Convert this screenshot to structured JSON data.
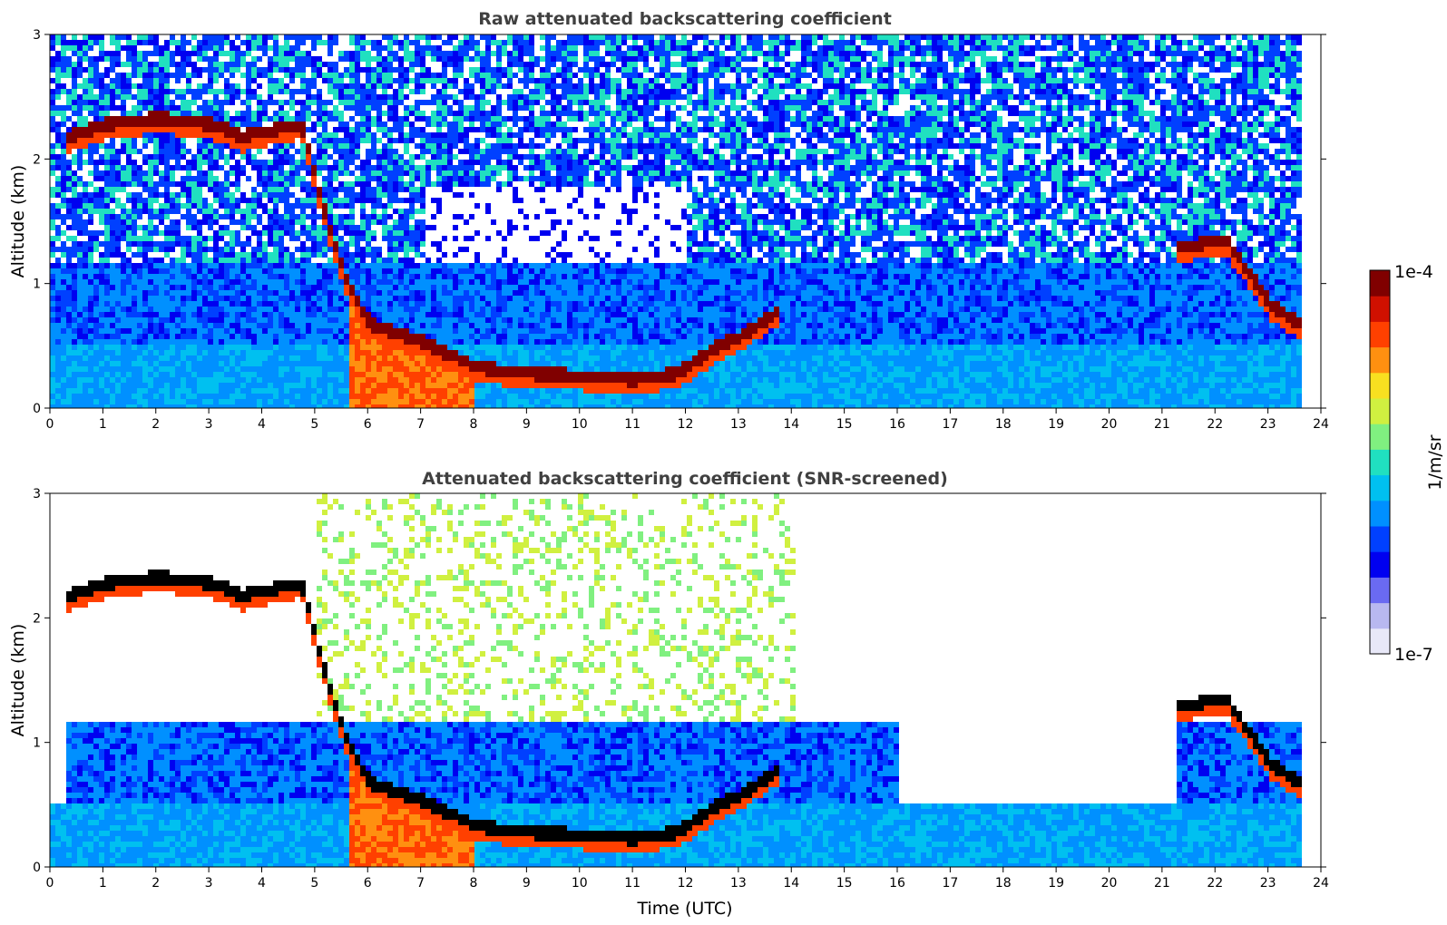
{
  "chart_data": [
    {
      "type": "heatmap",
      "title": "Raw attenuated backscattering coefficient",
      "xlabel": "",
      "ylabel": "Altitude (km)",
      "xlim": [
        0,
        24
      ],
      "ylim": [
        0,
        3
      ],
      "xticks": [
        "0",
        "1",
        "2",
        "3",
        "4",
        "5",
        "6",
        "7",
        "8",
        "9",
        "10",
        "11",
        "12",
        "13",
        "14",
        "15",
        "16",
        "17",
        "18",
        "19",
        "20",
        "21",
        "22",
        "23",
        "24"
      ],
      "yticks": [
        "0",
        "1",
        "2",
        "3"
      ],
      "data_end_hour": 23.55,
      "cloud_base_km": {
        "hours": [
          0.3,
          1.0,
          2.0,
          3.0,
          3.6,
          4.1,
          4.7,
          5.2,
          5.6,
          6.0,
          7.0,
          8.0,
          9.0,
          10.0,
          11.0,
          11.8,
          12.5,
          13.0,
          13.7
        ],
        "altitude": [
          2.2,
          2.3,
          2.35,
          2.3,
          2.2,
          2.25,
          2.3,
          1.5,
          1.0,
          0.7,
          0.55,
          0.35,
          0.3,
          0.28,
          0.25,
          0.3,
          0.5,
          0.6,
          0.8
        ]
      }
    },
    {
      "type": "heatmap",
      "title": "Attenuated backscattering coefficient (SNR-screened)",
      "xlabel": "Time (UTC)",
      "ylabel": "Altitude (km)",
      "xlim": [
        0,
        24
      ],
      "ylim": [
        0,
        3
      ],
      "xticks": [
        "0",
        "1",
        "2",
        "3",
        "4",
        "5",
        "6",
        "7",
        "8",
        "9",
        "10",
        "11",
        "12",
        "13",
        "14",
        "15",
        "16",
        "17",
        "18",
        "19",
        "20",
        "21",
        "22",
        "23",
        "24"
      ],
      "yticks": [
        "0",
        "1",
        "2",
        "3"
      ],
      "data_end_hour": 23.55
    }
  ],
  "colorbar": {
    "label": "1/m/sr",
    "min_label": "1e-7",
    "max_label": "1e-4",
    "colors": [
      "#e8e8f8",
      "#b8b8f0",
      "#6a6af2",
      "#0000f0",
      "#0040ff",
      "#0090ff",
      "#00c0f0",
      "#20e0c0",
      "#80f080",
      "#d0f040",
      "#f8e020",
      "#ff9010",
      "#ff4000",
      "#d01000",
      "#800000"
    ]
  }
}
